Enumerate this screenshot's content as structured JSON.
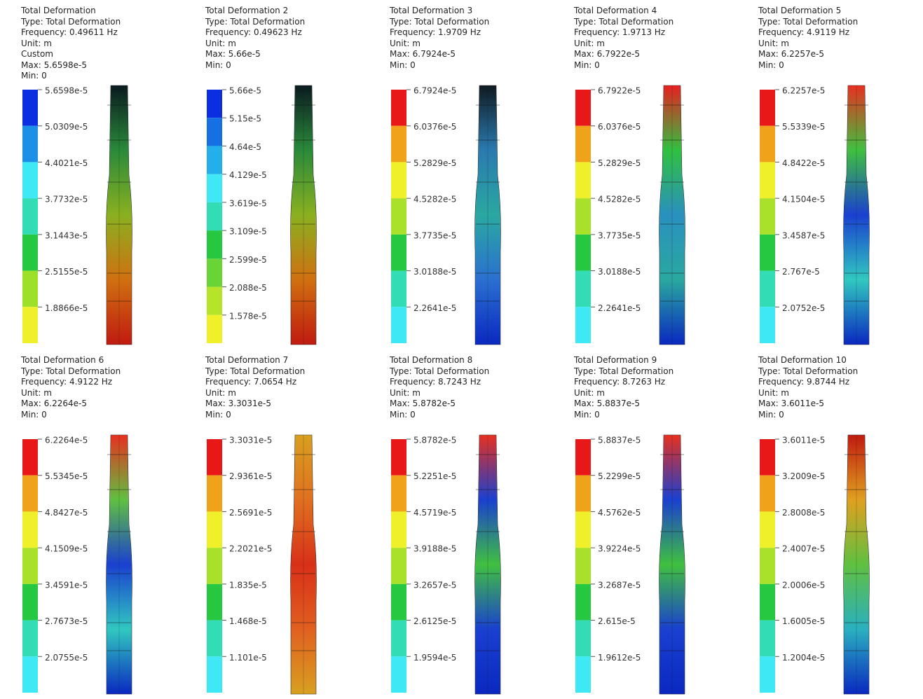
{
  "panels": [
    {
      "title": "Total Deformation",
      "type": "Type: Total Deformation",
      "frequency": "Frequency: 0.49611 Hz",
      "unit": "Unit: m",
      "custom": "Custom",
      "max": "Max: 5.6598e-5",
      "min": "Min: 0",
      "legend": [
        "5.6598e-5",
        "5.0309e-5",
        "4.4021e-5",
        "3.7732e-5",
        "3.1443e-5",
        "2.5155e-5",
        "1.8866e-5"
      ],
      "legend_colors": [
        "#0a2ee0",
        "#1c8fe6",
        "#3fe8f5",
        "#32dcb4",
        "#26c842",
        "#9ce02a",
        "#f0f02a"
      ],
      "column_colors": [
        "#0a1a20",
        "#2a8a3a",
        "#8ab020",
        "#d07010",
        "#c01a10"
      ]
    },
    {
      "title": "Total Deformation 2",
      "type": "Type: Total Deformation",
      "frequency": "Frequency: 0.49623 Hz",
      "unit": "Unit: m",
      "max": "Max: 5.66e-5",
      "min": "Min: 0",
      "legend": [
        "5.66e-5",
        "5.15e-5",
        "4.64e-5",
        "4.129e-5",
        "3.619e-5",
        "3.109e-5",
        "2.599e-5",
        "2.088e-5",
        "1.578e-5"
      ],
      "legend_colors": [
        "#0a2ee0",
        "#1670e4",
        "#23b0ea",
        "#3fe8f5",
        "#32dcb4",
        "#26c842",
        "#6ad436",
        "#b6e42a",
        "#f0f02a"
      ],
      "column_colors": [
        "#0a1a20",
        "#2a8a3a",
        "#8ab020",
        "#d07010",
        "#c01a10"
      ]
    },
    {
      "title": "Total Deformation 3",
      "type": "Type: Total Deformation",
      "frequency": "Frequency: 1.9709 Hz",
      "unit": "Unit: m",
      "max": "Max: 6.7924e-5",
      "min": "Min: 0",
      "legend": [
        "6.7924e-5",
        "6.0376e-5",
        "5.2829e-5",
        "4.5282e-5",
        "3.7735e-5",
        "3.0188e-5",
        "2.2641e-5"
      ],
      "legend_colors": [
        "#e81818",
        "#f0a21a",
        "#f0f02a",
        "#a8e02a",
        "#26c842",
        "#32dcb4",
        "#3fe8f5"
      ],
      "column_colors": [
        "#101a20",
        "#2a7ab0",
        "#2aa8a0",
        "#2a70d0",
        "#0a28c0"
      ]
    },
    {
      "title": "Total Deformation 4",
      "type": "Type: Total Deformation",
      "frequency": "Frequency: 1.9713 Hz",
      "unit": "Unit: m",
      "max": "Max: 6.7922e-5",
      "min": "Min: 0",
      "legend": [
        "6.7922e-5",
        "6.0376e-5",
        "5.2829e-5",
        "4.5282e-5",
        "3.7735e-5",
        "3.0188e-5",
        "2.2641e-5"
      ],
      "legend_colors": [
        "#e81818",
        "#f0a21a",
        "#f0f02a",
        "#a8e02a",
        "#26c842",
        "#32dcb4",
        "#3fe8f5"
      ],
      "column_colors": [
        "#e82020",
        "#30c040",
        "#2a90c0",
        "#2aa8a0",
        "#0a28c0"
      ]
    },
    {
      "title": "Total Deformation 5",
      "type": "Type: Total Deformation",
      "frequency": "Frequency: 4.9119 Hz",
      "unit": "Unit: m",
      "max": "Max: 6.2257e-5",
      "min": "Min: 0",
      "legend": [
        "6.2257e-5",
        "5.5339e-5",
        "4.8422e-5",
        "4.1504e-5",
        "3.4587e-5",
        "2.767e-5",
        "2.0752e-5"
      ],
      "legend_colors": [
        "#e81818",
        "#f0a21a",
        "#f0f02a",
        "#a8e02a",
        "#26c842",
        "#32dcb4",
        "#3fe8f5"
      ],
      "column_colors": [
        "#e83020",
        "#40c040",
        "#1a40d0",
        "#30c8c0",
        "#0a28c0"
      ]
    },
    {
      "title": "Total Deformation 6",
      "type": "Type: Total Deformation",
      "frequency": "Frequency: 4.9122 Hz",
      "unit": "Unit: m",
      "max": "Max: 6.2264e-5",
      "min": "Min: 0",
      "legend": [
        "6.2264e-5",
        "5.5345e-5",
        "4.8427e-5",
        "4.1509e-5",
        "3.4591e-5",
        "2.7673e-5",
        "2.0755e-5"
      ],
      "legend_colors": [
        "#e81818",
        "#f0a21a",
        "#f0f02a",
        "#a8e02a",
        "#26c842",
        "#32dcb4",
        "#3fe8f5"
      ],
      "column_colors": [
        "#e83020",
        "#60c040",
        "#1a40d0",
        "#30c8c0",
        "#0a28c0"
      ]
    },
    {
      "title": "Total Deformation 7",
      "type": "Type: Total Deformation",
      "frequency": "Frequency: 7.0654 Hz",
      "unit": "Unit: m",
      "max": "Max: 3.3031e-5",
      "min": "Min: 0",
      "legend": [
        "3.3031e-5",
        "2.9361e-5",
        "2.5691e-5",
        "2.2021e-5",
        "1.835e-5",
        "1.468e-5",
        "1.101e-5"
      ],
      "legend_colors": [
        "#e81818",
        "#f0a21a",
        "#f0f02a",
        "#a8e02a",
        "#26c842",
        "#32dcb4",
        "#3fe8f5"
      ],
      "column_colors": [
        "#d8a020",
        "#e07020",
        "#d83018",
        "#e06020",
        "#d8a020"
      ]
    },
    {
      "title": "Total Deformation 8",
      "type": "Type: Total Deformation",
      "frequency": "Frequency: 8.7243 Hz",
      "unit": "Unit: m",
      "max": "Max: 5.8782e-5",
      "min": "Min: 0",
      "legend": [
        "5.8782e-5",
        "5.2251e-5",
        "4.5719e-5",
        "3.9188e-5",
        "3.2657e-5",
        "2.6125e-5",
        "1.9594e-5"
      ],
      "legend_colors": [
        "#e81818",
        "#f0a21a",
        "#f0f02a",
        "#a8e02a",
        "#26c842",
        "#32dcb4",
        "#3fe8f5"
      ],
      "column_colors": [
        "#e83020",
        "#1a40d0",
        "#40c040",
        "#1a40d0",
        "#0a28c0"
      ]
    },
    {
      "title": "Total Deformation 9",
      "type": "Type: Total Deformation",
      "frequency": "Frequency: 8.7263 Hz",
      "unit": "Unit: m",
      "max": "Max: 5.8837e-5",
      "min": "Min: 0",
      "legend": [
        "5.8837e-5",
        "5.2299e-5",
        "4.5762e-5",
        "3.9224e-5",
        "3.2687e-5",
        "2.615e-5",
        "1.9612e-5"
      ],
      "legend_colors": [
        "#e81818",
        "#f0a21a",
        "#f0f02a",
        "#a8e02a",
        "#26c842",
        "#32dcb4",
        "#3fe8f5"
      ],
      "column_colors": [
        "#e83020",
        "#1a40d0",
        "#40c040",
        "#1a40d0",
        "#0a28c0"
      ]
    },
    {
      "title": "Total Deformation 10",
      "type": "Type: Total Deformation",
      "frequency": "Frequency: 9.8744 Hz",
      "unit": "Unit: m",
      "max": "Max: 3.6011e-5",
      "min": "Min: 0",
      "legend": [
        "3.6011e-5",
        "3.2009e-5",
        "2.8008e-5",
        "2.4007e-5",
        "2.0006e-5",
        "1.6005e-5",
        "1.2004e-5"
      ],
      "legend_colors": [
        "#e81818",
        "#f0a21a",
        "#f0f02a",
        "#a8e02a",
        "#26c842",
        "#32dcb4",
        "#3fe8f5"
      ],
      "column_colors": [
        "#c01a10",
        "#e0a020",
        "#60c040",
        "#2ab0c0",
        "#0a28c0"
      ]
    }
  ]
}
